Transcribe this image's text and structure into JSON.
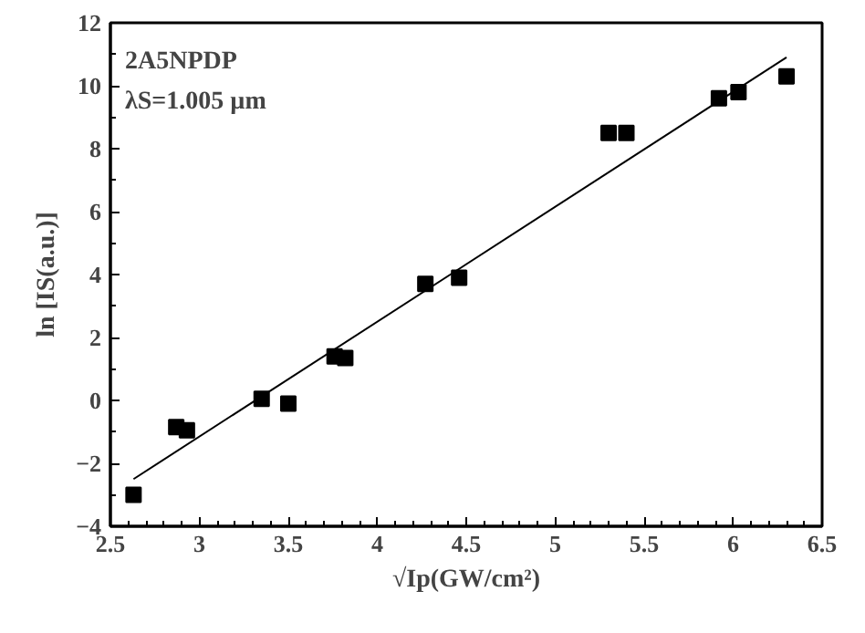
{
  "chart_data": {
    "type": "scatter",
    "xlabel": "√Ip(GW/cm²)",
    "ylabel": "ln [IS(a.u.)]",
    "annotations": [
      "2A5NPDP",
      "λS=1.005 µm"
    ],
    "xlim": [
      2.5,
      6.5
    ],
    "ylim": [
      -4,
      12
    ],
    "xticks": [
      2.5,
      3,
      3.5,
      4,
      4.5,
      5,
      5.5,
      6,
      6.5
    ],
    "yticks": [
      -4,
      -2,
      0,
      2,
      4,
      6,
      8,
      10,
      12
    ],
    "grid": false,
    "series": [
      {
        "marker": "square",
        "color": "#000000",
        "x": [
          2.63,
          2.87,
          2.93,
          3.35,
          3.5,
          3.76,
          3.82,
          4.27,
          4.46,
          5.3,
          5.4,
          5.92,
          6.03,
          6.3
        ],
        "values": [
          -3.0,
          -0.85,
          -0.95,
          0.05,
          -0.1,
          1.4,
          1.35,
          3.7,
          3.9,
          8.5,
          8.5,
          9.6,
          9.8,
          10.3
        ]
      },
      {
        "type": "line",
        "color": "#000000",
        "line_style": "solid",
        "x": [
          2.63,
          6.3
        ],
        "values": [
          -2.5,
          10.9
        ]
      }
    ]
  }
}
